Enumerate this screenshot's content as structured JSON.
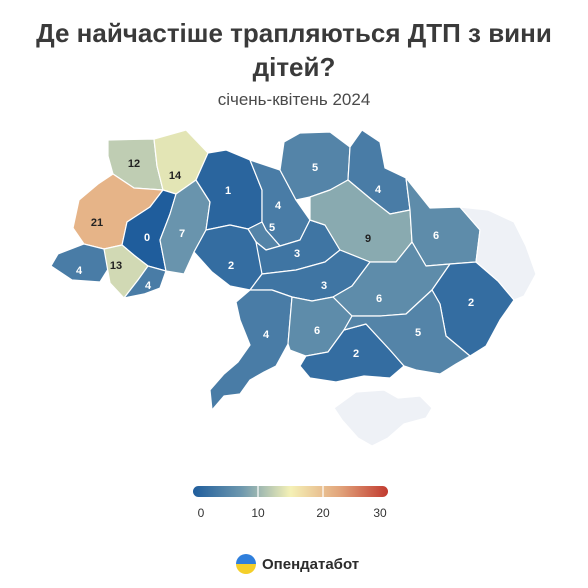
{
  "title": "Де найчастіше трапляються ДТП з вини дітей?",
  "subtitle": "січень-квітень 2024",
  "brand": {
    "name": "Опендатабот",
    "icon": "opendatabot-logo-icon"
  },
  "map": {
    "type": "choropleth",
    "regions": [
      {
        "id": "volyn",
        "value": 12
      },
      {
        "id": "rivne",
        "value": 14
      },
      {
        "id": "lviv",
        "value": 21
      },
      {
        "id": "ternopil",
        "value": 0
      },
      {
        "id": "khmelnytskyi",
        "value": 7
      },
      {
        "id": "zakarpattia",
        "value": 4
      },
      {
        "id": "ivano-frankivsk",
        "value": 13
      },
      {
        "id": "chernivtsi",
        "value": 4
      },
      {
        "id": "zhytomyr",
        "value": 1
      },
      {
        "id": "kyiv-oblast",
        "value": 4
      },
      {
        "id": "kyiv-city",
        "value": 5
      },
      {
        "id": "chernihiv",
        "value": 5
      },
      {
        "id": "sumy",
        "value": 4
      },
      {
        "id": "vinnytsia",
        "value": 2
      },
      {
        "id": "cherkasy",
        "value": 3
      },
      {
        "id": "poltava",
        "value": 9
      },
      {
        "id": "kharkiv",
        "value": 6
      },
      {
        "id": "kirovohrad",
        "value": 3
      },
      {
        "id": "dnipropetrovsk",
        "value": 6
      },
      {
        "id": "donetsk",
        "value": 2
      },
      {
        "id": "odesa",
        "value": 4
      },
      {
        "id": "mykolaiv",
        "value": 6
      },
      {
        "id": "kherson",
        "value": 2
      },
      {
        "id": "zaporizhzhia",
        "value": 5
      },
      {
        "id": "luhansk",
        "value": null
      },
      {
        "id": "crimea",
        "value": null
      }
    ]
  },
  "legend": {
    "min": 0,
    "max": 30,
    "ticks": [
      "0",
      "10",
      "20",
      "30"
    ],
    "stops": [
      "#1f5d9c",
      "#6e98ae",
      "#f5f1b6",
      "#e2a57c",
      "#c13a2f"
    ],
    "no_data_color": "#eef1f6"
  }
}
